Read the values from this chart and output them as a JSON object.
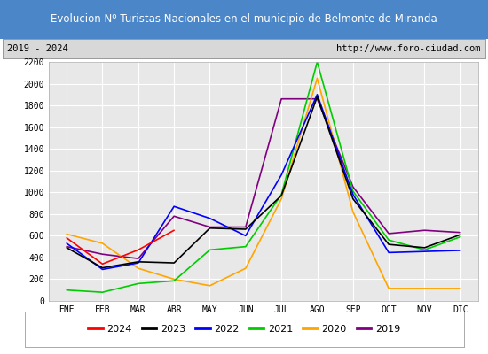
{
  "title": "Evolucion Nº Turistas Nacionales en el municipio de Belmonte de Miranda",
  "subtitle_left": "2019 - 2024",
  "subtitle_right": "http://www.foro-ciudad.com",
  "months": [
    "ENE",
    "FEB",
    "MAR",
    "ABR",
    "MAY",
    "JUN",
    "JUL",
    "AGO",
    "SEP",
    "OCT",
    "NOV",
    "DIC"
  ],
  "title_bg": "#4a86c8",
  "title_color": "white",
  "plot_bg": "#e8e8e8",
  "grid_color": "white",
  "series": {
    "2024": {
      "color": "red",
      "values": [
        580,
        340,
        470,
        650,
        null,
        null,
        null,
        null,
        null,
        null,
        null,
        null
      ]
    },
    "2023": {
      "color": "black",
      "values": [
        490,
        305,
        360,
        350,
        670,
        660,
        970,
        1880,
        940,
        520,
        490,
        610
      ]
    },
    "2022": {
      "color": "blue",
      "values": [
        530,
        290,
        350,
        870,
        760,
        600,
        1160,
        1900,
        980,
        445,
        455,
        465
      ]
    },
    "2021": {
      "color": "#00cc00",
      "values": [
        100,
        80,
        160,
        185,
        470,
        500,
        980,
        2200,
        1010,
        560,
        470,
        590
      ]
    },
    "2020": {
      "color": "orange",
      "values": [
        615,
        530,
        300,
        200,
        140,
        300,
        940,
        2050,
        820,
        115,
        115,
        115
      ]
    },
    "2019": {
      "color": "purple",
      "values": [
        500,
        430,
        390,
        780,
        680,
        680,
        1860,
        1860,
        1050,
        620,
        650,
        630
      ]
    }
  },
  "ylim": [
    0,
    2200
  ],
  "yticks": [
    0,
    200,
    400,
    600,
    800,
    1000,
    1200,
    1400,
    1600,
    1800,
    2000,
    2200
  ]
}
